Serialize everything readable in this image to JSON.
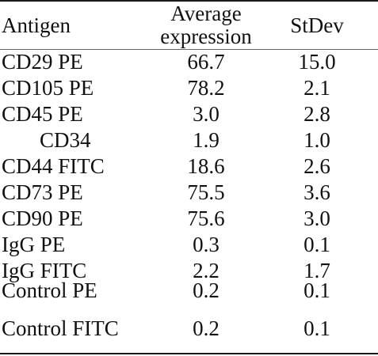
{
  "table": {
    "headers": {
      "antigen": "Antigen",
      "average_line1": "Average",
      "average_line2": "expression",
      "stdev": "StDev"
    },
    "rows": [
      {
        "antigen": "CD29 PE",
        "average": "66.7",
        "stdev": "15.0"
      },
      {
        "antigen": "CD105 PE",
        "average": "78.2",
        "stdev": "2.1"
      },
      {
        "antigen": "CD45 PE",
        "average": "3.0",
        "stdev": "2.8"
      },
      {
        "antigen": "CD34",
        "average": "1.9",
        "stdev": "1.0"
      },
      {
        "antigen": "CD44 FITC",
        "average": "18.6",
        "stdev": "2.6"
      },
      {
        "antigen": "CD73 PE",
        "average": "75.5",
        "stdev": "3.6"
      },
      {
        "antigen": "CD90 PE",
        "average": "75.6",
        "stdev": "3.0"
      },
      {
        "antigen": "IgG PE",
        "average": "0.3",
        "stdev": "0.1"
      },
      {
        "antigen": "IgG FITC",
        "average": "2.2",
        "stdev": "1.7"
      },
      {
        "antigen": "Control PE",
        "average": "0.2",
        "stdev": "0.1"
      },
      {
        "antigen": "Control FITC",
        "average": "0.2",
        "stdev": "0.1"
      }
    ]
  }
}
